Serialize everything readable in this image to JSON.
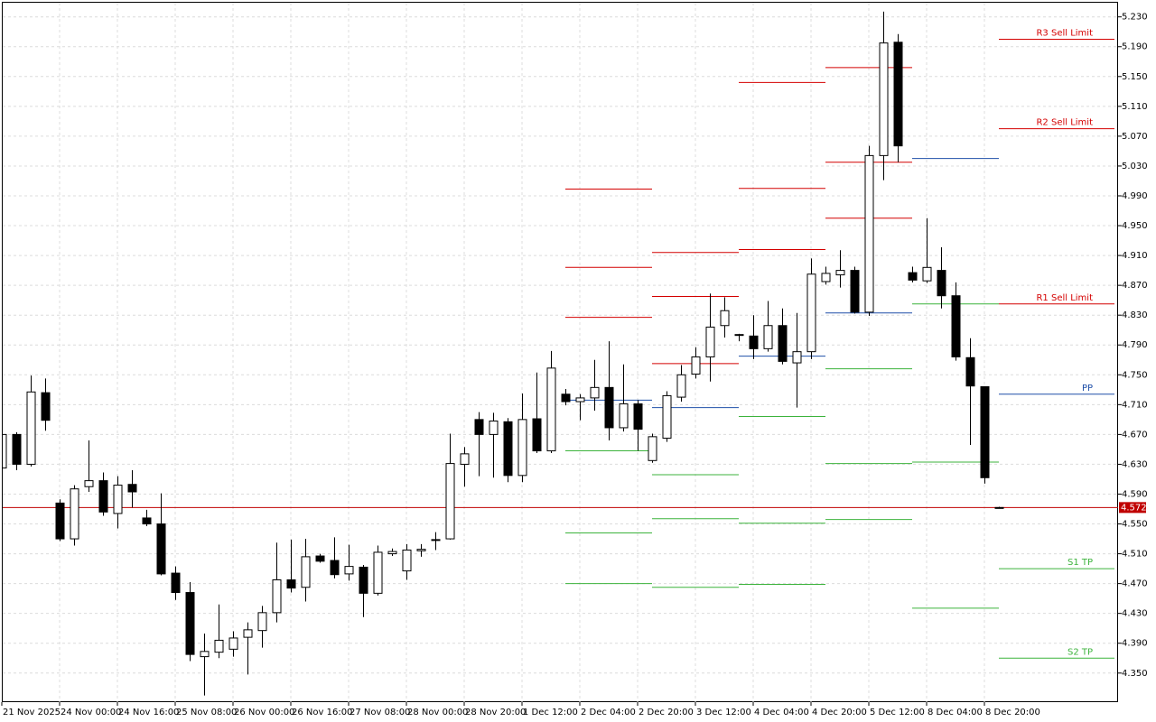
{
  "chart_data": {
    "type": "candlestick",
    "categories": [
      "21 Nov 2025",
      null,
      null,
      null,
      "24 Nov 00:00",
      null,
      null,
      null,
      "24 Nov 16:00",
      null,
      null,
      null,
      "25 Nov 08:00",
      null,
      null,
      null,
      "26 Nov 00:00",
      null,
      null,
      null,
      "26 Nov 16:00",
      null,
      null,
      null,
      "27 Nov 08:00",
      null,
      null,
      null,
      "28 Nov 00:00",
      null,
      null,
      null,
      "28 Nov 20:00",
      null,
      null,
      null,
      "1 Dec 12:00",
      null,
      null,
      null,
      "2 Dec 04:00",
      null,
      null,
      null,
      "2 Dec 20:00",
      null,
      null,
      null,
      "3 Dec 12:00",
      null,
      null,
      null,
      "4 Dec 04:00",
      null,
      null,
      null,
      "4 Dec 20:00",
      null,
      null,
      null,
      "5 Dec 12:00",
      null,
      null,
      null,
      "8 Dec 04:00",
      null,
      null,
      null,
      "8 Dec 20:00",
      null
    ],
    "open": [
      4.625,
      4.67,
      4.63,
      4.726,
      4.578,
      4.53,
      4.6,
      4.608,
      4.564,
      4.603,
      4.558,
      4.55,
      4.484,
      4.458,
      4.372,
      4.378,
      4.382,
      4.398,
      4.407,
      4.431,
      4.475,
      4.465,
      4.507,
      4.501,
      4.483,
      4.492,
      4.457,
      4.51,
      4.487,
      4.514,
      4.528,
      4.53,
      4.63,
      4.69,
      4.67,
      4.687,
      4.615,
      4.691,
      4.648,
      4.724,
      4.714,
      4.719,
      4.733,
      4.679,
      4.711,
      4.635,
      4.665,
      4.72,
      4.751,
      4.774,
      4.816,
      4.803,
      4.802,
      4.785,
      4.816,
      4.766,
      4.781,
      4.875,
      4.884,
      4.89,
      4.834,
      5.044,
      5.196,
      4.887,
      4.876,
      4.89,
      4.856,
      4.773,
      4.734,
      4.572
    ],
    "high": [
      4.672,
      4.673,
      4.749,
      4.745,
      4.583,
      4.602,
      4.662,
      4.619,
      4.614,
      4.622,
      4.569,
      4.591,
      4.493,
      4.472,
      4.403,
      4.442,
      4.406,
      4.418,
      4.44,
      4.525,
      4.529,
      4.53,
      4.51,
      4.532,
      4.522,
      4.495,
      4.521,
      4.517,
      4.523,
      4.523,
      4.539,
      4.671,
      4.653,
      4.7,
      4.699,
      4.692,
      4.725,
      4.753,
      4.782,
      4.731,
      4.724,
      4.77,
      4.795,
      4.764,
      4.716,
      4.671,
      4.728,
      4.763,
      4.787,
      4.859,
      4.854,
      4.805,
      4.83,
      4.849,
      4.839,
      4.833,
      4.906,
      4.895,
      4.917,
      4.895,
      5.057,
      5.237,
      5.207,
      4.895,
      4.96,
      4.921,
      4.874,
      4.799,
      4.734,
      4.573
    ],
    "low": [
      4.62,
      4.622,
      4.627,
      4.675,
      4.527,
      4.521,
      4.593,
      4.561,
      4.544,
      4.572,
      4.547,
      4.481,
      4.448,
      4.366,
      4.32,
      4.37,
      4.372,
      4.348,
      4.384,
      4.418,
      4.458,
      4.446,
      4.498,
      4.477,
      4.474,
      4.425,
      4.454,
      4.507,
      4.475,
      4.506,
      4.515,
      4.529,
      4.6,
      4.614,
      4.612,
      4.606,
      4.606,
      4.645,
      4.645,
      4.709,
      4.689,
      4.702,
      4.662,
      4.674,
      4.648,
      4.632,
      4.66,
      4.714,
      4.745,
      4.741,
      4.8,
      4.795,
      4.771,
      4.781,
      4.764,
      4.706,
      4.771,
      4.871,
      4.867,
      4.832,
      4.829,
      5.011,
      5.035,
      4.874,
      4.873,
      4.839,
      4.769,
      4.656,
      4.604,
      4.571
    ],
    "close": [
      4.67,
      4.63,
      4.727,
      4.689,
      4.53,
      4.597,
      4.608,
      4.566,
      4.602,
      4.593,
      4.55,
      4.483,
      4.458,
      4.375,
      4.379,
      4.394,
      4.397,
      4.408,
      4.431,
      4.475,
      4.464,
      4.506,
      4.5,
      4.482,
      4.493,
      4.457,
      4.512,
      4.513,
      4.515,
      4.516,
      4.529,
      4.631,
      4.644,
      4.67,
      4.688,
      4.615,
      4.69,
      4.648,
      4.759,
      4.714,
      4.719,
      4.733,
      4.679,
      4.711,
      4.677,
      4.667,
      4.722,
      4.75,
      4.774,
      4.814,
      4.836,
      4.804,
      4.785,
      4.816,
      4.768,
      4.781,
      4.885,
      4.886,
      4.89,
      4.834,
      5.044,
      5.195,
      5.057,
      4.877,
      4.894,
      4.856,
      4.774,
      4.735,
      4.612,
      4.572
    ],
    "ylim": [
      4.311,
      5.249
    ],
    "yticks": [
      {
        "value": 5.23,
        "label": "5.230"
      },
      {
        "value": 5.19,
        "label": "5.190"
      },
      {
        "value": 5.15,
        "label": "5.150"
      },
      {
        "value": 5.11,
        "label": "5.110"
      },
      {
        "value": 5.07,
        "label": "5.070"
      },
      {
        "value": 5.03,
        "label": "5.030"
      },
      {
        "value": 4.99,
        "label": "4.990"
      },
      {
        "value": 4.95,
        "label": "4.950"
      },
      {
        "value": 4.91,
        "label": "4.910"
      },
      {
        "value": 4.87,
        "label": "4.870"
      },
      {
        "value": 4.83,
        "label": "4.830"
      },
      {
        "value": 4.79,
        "label": "4.790"
      },
      {
        "value": 4.75,
        "label": "4.750"
      },
      {
        "value": 4.71,
        "label": "4.710"
      },
      {
        "value": 4.67,
        "label": "4.670"
      },
      {
        "value": 4.63,
        "label": "4.630"
      },
      {
        "value": 4.59,
        "label": "4.590"
      },
      {
        "value": 4.55,
        "label": "4.550"
      },
      {
        "value": 4.51,
        "label": "4.510"
      },
      {
        "value": 4.47,
        "label": "4.470"
      },
      {
        "value": 4.43,
        "label": "4.430"
      },
      {
        "value": 4.39,
        "label": "4.390"
      },
      {
        "value": 4.35,
        "label": "4.350"
      }
    ],
    "grid": true,
    "current_price": 4.572,
    "colors": {
      "bull": "#ffffff",
      "bear": "#000000",
      "resistance": "#d40000",
      "pivot": "#1f4fa8",
      "support": "#3cb33c",
      "current": "#c00000"
    },
    "pivots": [
      {
        "resistance": [
          4.999,
          4.894,
          4.827
        ],
        "pivot": 4.716,
        "support": [
          4.648,
          4.538,
          4.47
        ]
      },
      {
        "resistance": [
          4.914,
          4.855,
          4.765
        ],
        "pivot": 4.706,
        "support": [
          4.616,
          4.557,
          4.465
        ]
      },
      {
        "resistance": [
          5.142,
          5.0,
          4.918
        ],
        "pivot": 4.775,
        "support": [
          4.694,
          4.551,
          4.469
        ]
      },
      {
        "resistance": [
          5.162,
          5.035,
          4.96
        ],
        "pivot": 4.833,
        "support": [
          4.758,
          4.631,
          4.556
        ]
      },
      {
        "pivot": 5.04,
        "support": [
          4.845,
          4.633,
          4.437
        ]
      },
      {
        "resistance": [
          {
            "value": 5.2,
            "label": "R3 Sell Limit"
          },
          {
            "value": 5.08,
            "label": "R2 Sell Limit"
          },
          {
            "value": 4.845,
            "label": "R1 Sell Limit"
          }
        ],
        "pivot": {
          "value": 4.724,
          "label": "PP"
        },
        "support": [
          {
            "value": 4.49,
            "label": "S1 TP"
          },
          {
            "value": 4.37,
            "label": "S2 TP"
          }
        ]
      }
    ]
  }
}
